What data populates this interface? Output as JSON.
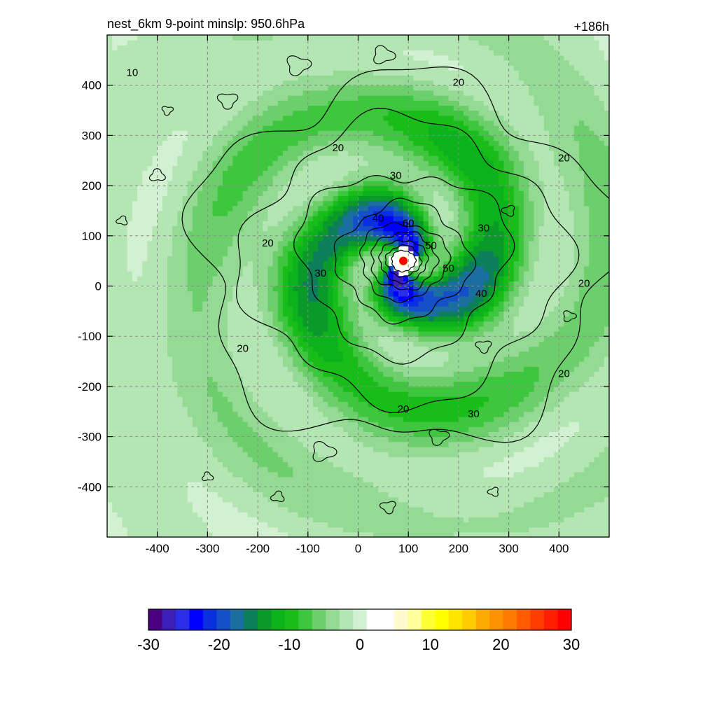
{
  "chart_data": {
    "type": "heatmap",
    "title": "nest_6km  9-point minslp: 950.6hPa",
    "forecast_hour": "+186h",
    "xlabel": "",
    "ylabel": "",
    "xlim": [
      -500,
      500
    ],
    "ylim": [
      -500,
      500
    ],
    "x_ticks": [
      "-400",
      "-300",
      "-200",
      "-100",
      "0",
      "100",
      "200",
      "300",
      "400"
    ],
    "y_ticks": [
      "400",
      "300",
      "200",
      "100",
      "0",
      "-100",
      "-200",
      "-300",
      "-400"
    ],
    "grid": "on",
    "colorbar": {
      "placement": "bottom",
      "range": [
        -30,
        30
      ],
      "tick_labels": [
        "-30",
        "-20",
        "-10",
        "0",
        "10",
        "20",
        "30"
      ],
      "colors": [
        "#4b0082",
        "#3c1fb8",
        "#2a2ee8",
        "#0000ff",
        "#0a2fe0",
        "#1550c8",
        "#1a6fa0",
        "#0c7f5a",
        "#0a9a2a",
        "#0cb21c",
        "#19bd19",
        "#3ec63e",
        "#6ccf6c",
        "#94da94",
        "#b4e6b4",
        "#d2f0d2",
        "#ffffff",
        "#ffffff",
        "#fffad0",
        "#ffff99",
        "#ffff33",
        "#ffff00",
        "#ffe400",
        "#ffcc00",
        "#ffaa00",
        "#ff9200",
        "#ff7800",
        "#ff5a00",
        "#ff3c00",
        "#ff1e00",
        "#ff0000"
      ]
    },
    "contour_labels": [
      "10",
      "20",
      "20",
      "20",
      "20",
      "20",
      "20",
      "20",
      "20",
      "30",
      "30",
      "30",
      "30",
      "40",
      "40",
      "50",
      "60",
      "50"
    ],
    "storm_center": {
      "x": 90,
      "y": 50
    },
    "minslp_hPa": 950.6
  }
}
